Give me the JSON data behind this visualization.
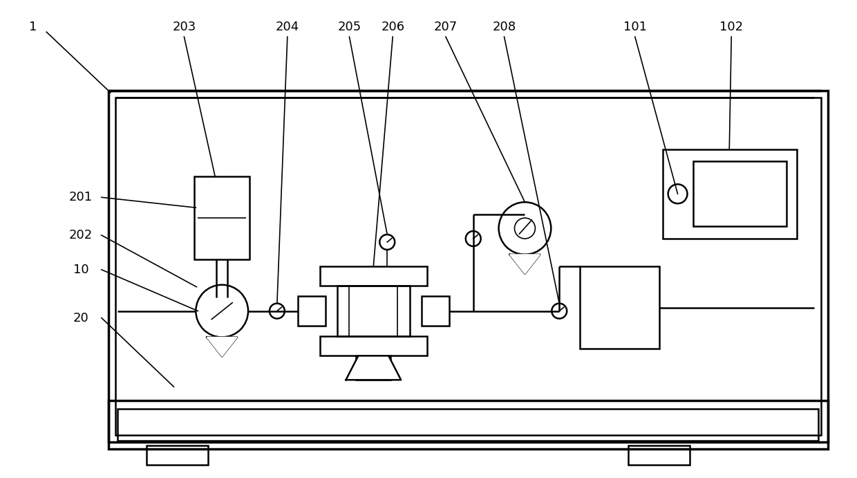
{
  "bg_color": "#ffffff",
  "line_color": "#000000",
  "lw": 1.8,
  "lw_thick": 2.5,
  "lw_thin": 1.2,
  "fig_width": 12.4,
  "fig_height": 6.91
}
